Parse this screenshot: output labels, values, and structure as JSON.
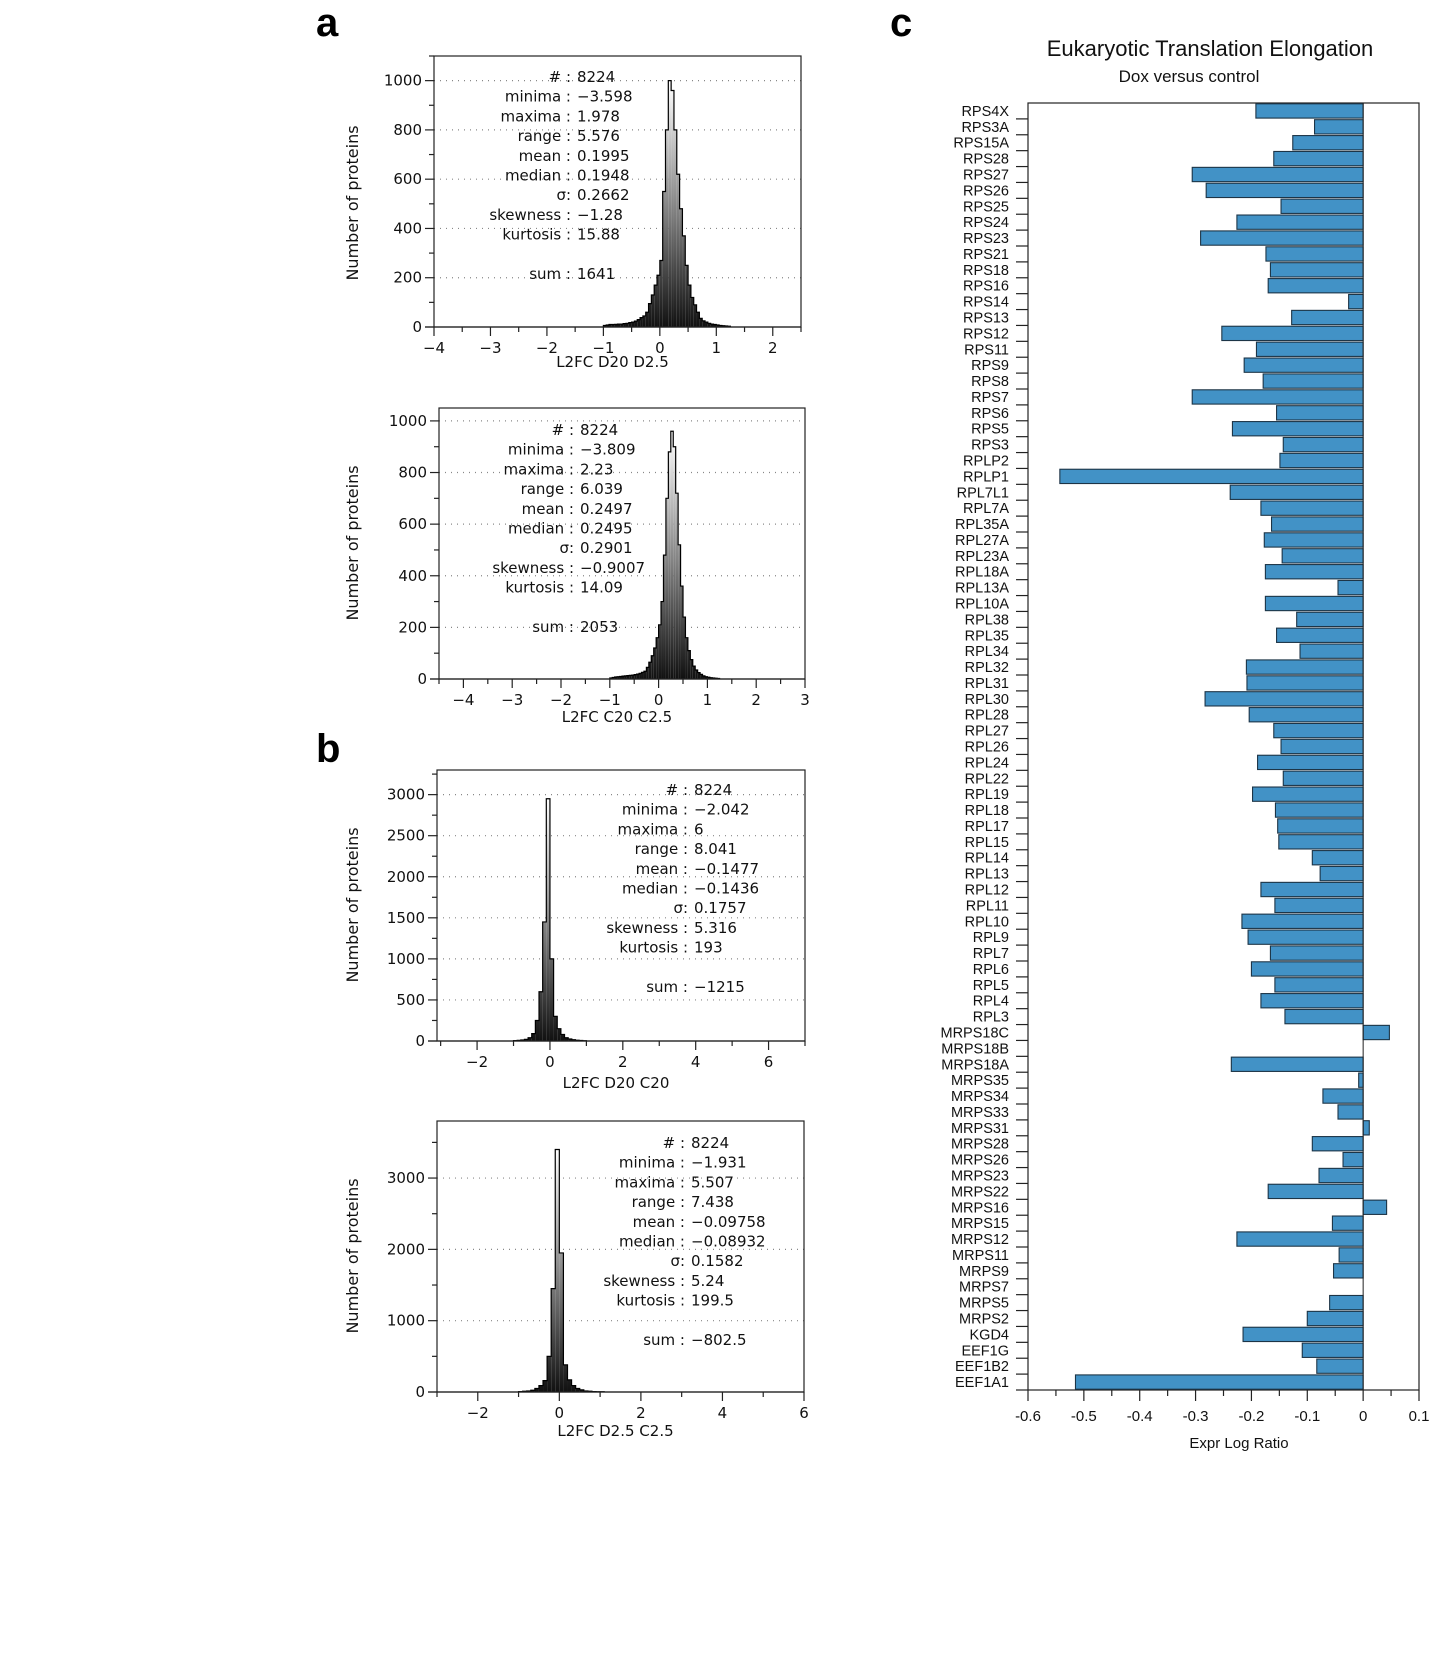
{
  "panel_letters": [
    "a",
    "b",
    "c"
  ],
  "chart_data": [
    {
      "type": "bar",
      "subtype": "histogram",
      "panel": "a",
      "xlabel": "L2FC D20 D2.5",
      "ylabel": "Number of proteins",
      "xlim": [
        -4,
        2.5
      ],
      "ylim": [
        0,
        1100
      ],
      "xticks": [
        -4,
        -3,
        -2,
        -1,
        0,
        1,
        2
      ],
      "yticks": [
        0,
        200,
        400,
        600,
        800,
        1000
      ],
      "grid": "dotted horizontal",
      "bin_start": -1.0,
      "bin_width": 0.05,
      "counts": [
        6,
        8,
        10,
        10,
        11,
        12,
        12,
        14,
        15,
        18,
        20,
        24,
        30,
        38,
        45,
        60,
        95,
        130,
        170,
        210,
        270,
        550,
        800,
        1000,
        960,
        800,
        620,
        480,
        370,
        250,
        170,
        120,
        90,
        60,
        35,
        25,
        20,
        15,
        12,
        10,
        8,
        6,
        5,
        4,
        3
      ],
      "stats": [
        {
          "label": "# :",
          "value": "8224"
        },
        {
          "label": "minima :",
          "value": "−3.598"
        },
        {
          "label": "maxima :",
          "value": "1.978"
        },
        {
          "label": "range :",
          "value": "5.576"
        },
        {
          "label": "mean :",
          "value": "0.1995"
        },
        {
          "label": "median :",
          "value": "0.1948"
        },
        {
          "label": "σ:",
          "value": "0.2662"
        },
        {
          "label": "skewness :",
          "value": "−1.28"
        },
        {
          "label": "kurtosis :",
          "value": "15.88"
        },
        {
          "label": "sum :",
          "value": "1641"
        }
      ]
    },
    {
      "type": "bar",
      "subtype": "histogram",
      "panel": "a",
      "xlabel": "L2FC C20 C2.5",
      "ylabel": "Number of proteins",
      "xlim": [
        -4.5,
        3
      ],
      "ylim": [
        0,
        1050
      ],
      "xticks": [
        -4,
        -3,
        -2,
        -1,
        0,
        1,
        2,
        3
      ],
      "yticks": [
        0,
        200,
        400,
        600,
        800,
        1000
      ],
      "grid": "dotted horizontal",
      "bin_start": -1.0,
      "bin_width": 0.05,
      "counts": [
        4,
        6,
        8,
        9,
        10,
        11,
        12,
        13,
        14,
        15,
        17,
        19,
        22,
        26,
        30,
        45,
        65,
        90,
        120,
        160,
        210,
        300,
        480,
        700,
        880,
        960,
        900,
        720,
        520,
        360,
        240,
        160,
        110,
        75,
        50,
        35,
        25,
        18,
        12,
        9,
        7,
        5,
        4,
        3,
        2
      ],
      "stats": [
        {
          "label": "# :",
          "value": "8224"
        },
        {
          "label": "minima :",
          "value": "−3.809"
        },
        {
          "label": "maxima :",
          "value": "2.23"
        },
        {
          "label": "range :",
          "value": "6.039"
        },
        {
          "label": "mean :",
          "value": "0.2497"
        },
        {
          "label": "median :",
          "value": "0.2495"
        },
        {
          "label": "σ:",
          "value": "0.2901"
        },
        {
          "label": "skewness :",
          "value": "−0.9007"
        },
        {
          "label": "kurtosis :",
          "value": "14.09"
        },
        {
          "label": "sum :",
          "value": "2053"
        }
      ]
    },
    {
      "type": "bar",
      "subtype": "histogram",
      "panel": "b",
      "xlabel": "L2FC D20 C20",
      "ylabel": "Number of proteins",
      "xlim": [
        -3.1,
        7
      ],
      "ylim": [
        0,
        3300
      ],
      "xticks": [
        -2,
        0,
        2,
        4,
        6
      ],
      "yticks": [
        0,
        500,
        1000,
        1500,
        2000,
        2500,
        3000
      ],
      "grid": "dotted horizontal",
      "bin_start": -1.0,
      "bin_width": 0.1,
      "counts": [
        5,
        8,
        12,
        20,
        40,
        90,
        250,
        600,
        1450,
        2950,
        1000,
        300,
        150,
        80,
        40,
        25,
        15,
        10,
        6,
        4
      ],
      "stats": [
        {
          "label": "# :",
          "value": "8224"
        },
        {
          "label": "minima :",
          "value": "−2.042"
        },
        {
          "label": "maxima :",
          "value": "6"
        },
        {
          "label": "range :",
          "value": "8.041"
        },
        {
          "label": "mean :",
          "value": "−0.1477"
        },
        {
          "label": "median :",
          "value": "−0.1436"
        },
        {
          "label": "σ:",
          "value": "0.1757"
        },
        {
          "label": "skewness :",
          "value": "5.316"
        },
        {
          "label": "kurtosis :",
          "value": "193"
        },
        {
          "label": "sum :",
          "value": "−1215"
        }
      ]
    },
    {
      "type": "bar",
      "subtype": "histogram",
      "panel": "b",
      "xlabel": "L2FC D2.5 C2.5",
      "ylabel": "Number of proteins",
      "xlim": [
        -3,
        6
      ],
      "ylim": [
        0,
        3800
      ],
      "xticks": [
        -2,
        0,
        2,
        4,
        6
      ],
      "yticks": [
        0,
        1000,
        2000,
        3000
      ],
      "grid": "dotted horizontal",
      "bin_start": -1.0,
      "bin_width": 0.1,
      "counts": [
        5,
        10,
        15,
        25,
        50,
        90,
        160,
        500,
        1450,
        3400,
        1950,
        380,
        170,
        90,
        50,
        30,
        15,
        10,
        6,
        4,
        3
      ],
      "stats": [
        {
          "label": "# :",
          "value": "8224"
        },
        {
          "label": "minima :",
          "value": "−1.931"
        },
        {
          "label": "maxima :",
          "value": "5.507"
        },
        {
          "label": "range :",
          "value": "7.438"
        },
        {
          "label": "mean :",
          "value": "−0.09758"
        },
        {
          "label": "median :",
          "value": "−0.08932"
        },
        {
          "label": "σ:",
          "value": "0.1582"
        },
        {
          "label": "skewness :",
          "value": "5.24"
        },
        {
          "label": "kurtosis :",
          "value": "199.5"
        },
        {
          "label": "sum :",
          "value": "−802.5"
        }
      ]
    },
    {
      "type": "bar",
      "orientation": "horizontal",
      "panel": "c",
      "title": "Eukaryotic Translation Elongation",
      "subtitle": "Dox versus control",
      "xlabel": "Expr Log Ratio",
      "xlim": [
        -0.6,
        0.1
      ],
      "xticks": [
        -0.6,
        -0.5,
        -0.4,
        -0.3,
        -0.2,
        -0.1,
        0,
        0.1
      ],
      "xtick_labels": [
        "-0.6",
        "-0.5",
        "-0.4",
        "-0.3",
        "-0.2",
        "-0.1",
        "0",
        "0.1"
      ],
      "bar_color": "#4292c6",
      "categories": [
        "RPS4X",
        "RPS3A",
        "RPS15A",
        "RPS28",
        "RPS27",
        "RPS26",
        "RPS25",
        "RPS24",
        "RPS23",
        "RPS21",
        "RPS18",
        "RPS16",
        "RPS14",
        "RPS13",
        "RPS12",
        "RPS11",
        "RPS9",
        "RPS8",
        "RPS7",
        "RPS6",
        "RPS5",
        "RPS3",
        "RPLP2",
        "RPLP1",
        "RPL7L1",
        "RPL7A",
        "RPL35A",
        "RPL27A",
        "RPL23A",
        "RPL18A",
        "RPL13A",
        "RPL10A",
        "RPL38",
        "RPL35",
        "RPL34",
        "RPL32",
        "RPL31",
        "RPL30",
        "RPL28",
        "RPL27",
        "RPL26",
        "RPL24",
        "RPL22",
        "RPL19",
        "RPL18",
        "RPL17",
        "RPL15",
        "RPL14",
        "RPL13",
        "RPL12",
        "RPL11",
        "RPL10",
        "RPL9",
        "RPL7",
        "RPL6",
        "RPL5",
        "RPL4",
        "RPL3",
        "MRPS18C",
        "MRPS18B",
        "MRPS18A",
        "MRPS35",
        "MRPS34",
        "MRPS33",
        "MRPS31",
        "MRPS28",
        "MRPS26",
        "MRPS23",
        "MRPS22",
        "MRPS16",
        "MRPS15",
        "MRPS12",
        "MRPS11",
        "MRPS9",
        "MRPS7",
        "MRPS5",
        "MRPS2",
        "KGD4",
        "EEF1G",
        "EEF1B2",
        "EEF1A1"
      ],
      "values": [
        -0.192,
        -0.087,
        -0.126,
        -0.16,
        -0.306,
        -0.281,
        -0.147,
        -0.226,
        -0.291,
        -0.174,
        -0.166,
        -0.17,
        -0.026,
        -0.128,
        -0.253,
        -0.191,
        -0.213,
        -0.179,
        -0.306,
        -0.155,
        -0.234,
        -0.143,
        -0.149,
        -0.543,
        -0.238,
        -0.183,
        -0.164,
        -0.177,
        -0.145,
        -0.175,
        -0.045,
        -0.175,
        -0.119,
        -0.155,
        -0.113,
        -0.209,
        -0.208,
        -0.283,
        -0.204,
        -0.16,
        -0.147,
        -0.189,
        -0.143,
        -0.198,
        -0.157,
        -0.153,
        -0.151,
        -0.091,
        -0.077,
        -0.183,
        -0.158,
        -0.217,
        -0.206,
        -0.166,
        -0.2,
        -0.158,
        -0.183,
        -0.14,
        0.047,
        0.0,
        -0.236,
        -0.008,
        -0.072,
        -0.045,
        0.011,
        -0.091,
        -0.036,
        -0.079,
        -0.17,
        0.042,
        -0.055,
        -0.226,
        -0.043,
        -0.053,
        0.0,
        -0.06,
        -0.1,
        -0.215,
        -0.109,
        -0.083,
        -0.515
      ]
    }
  ]
}
